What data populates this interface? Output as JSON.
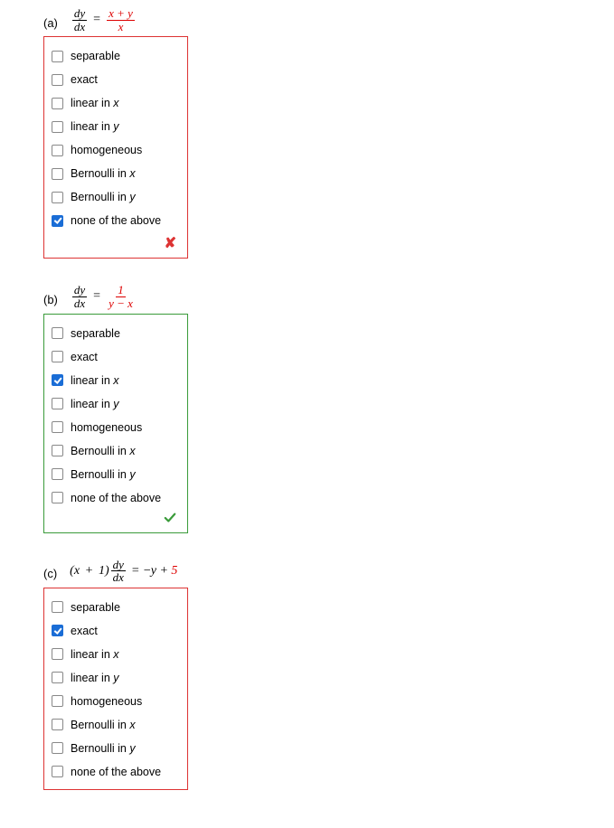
{
  "options": [
    {
      "key": "separable",
      "label": "separable"
    },
    {
      "key": "exact",
      "label": "exact"
    },
    {
      "key": "linear_in_x",
      "label_html": "linear in <span class='ix'>x</span>"
    },
    {
      "key": "linear_in_y",
      "label_html": "linear in <span class='ix'>y</span>"
    },
    {
      "key": "homogeneous",
      "label": "homogeneous"
    },
    {
      "key": "bernoulli_in_x",
      "label_html": "Bernoulli in <span class='ix'>x</span>"
    },
    {
      "key": "bernoulli_in_y",
      "label_html": "Bernoulli in <span class='ix'>y</span>"
    },
    {
      "key": "none",
      "label": "none of the above"
    }
  ],
  "questions": [
    {
      "label": "(a)",
      "formula": {
        "lhs_num": "dy",
        "lhs_den": "dx",
        "rhs_type": "frac",
        "rhs_num": "x + y",
        "rhs_den": "x",
        "rhs_red": true
      },
      "checked": [
        "none"
      ],
      "status": "incorrect"
    },
    {
      "label": "(b)",
      "formula": {
        "lhs_num": "dy",
        "lhs_den": "dx",
        "rhs_type": "frac",
        "rhs_num": "1",
        "rhs_den": "y − x",
        "rhs_red": true
      },
      "checked": [
        "linear_in_x"
      ],
      "status": "correct"
    },
    {
      "label": "(c)",
      "formula": {
        "prefix": "(x + 1)",
        "lhs_num": "dy",
        "lhs_den": "dx",
        "rhs_type": "expr",
        "rhs_plain": "−y + ",
        "rhs_red_tail": "5"
      },
      "checked": [
        "exact"
      ],
      "status": "incorrect"
    }
  ],
  "colors": {
    "incorrect_border": "#d33",
    "correct_border": "#3a9b3a",
    "red_text": "#d00",
    "checkbox_fill": "#1a6dd6"
  }
}
